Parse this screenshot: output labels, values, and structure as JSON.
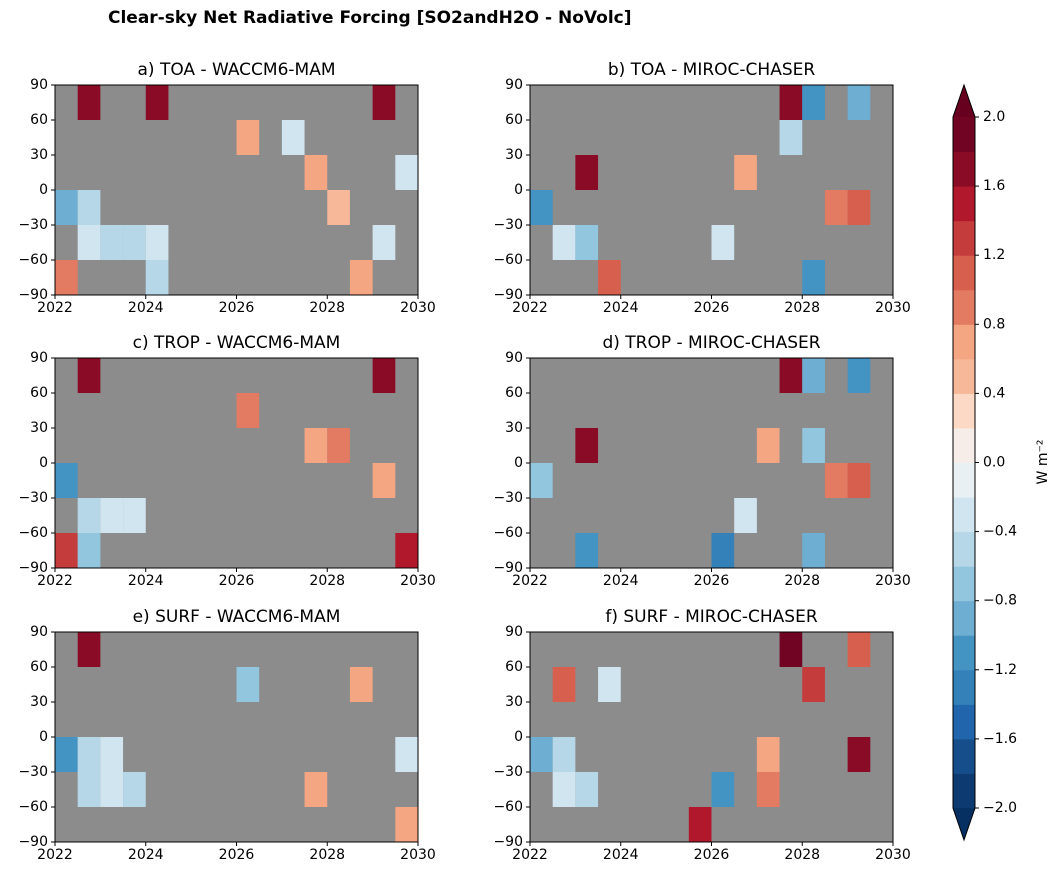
{
  "title": "Clear-sky Net Radiative Forcing [SO2andH2O - NoVolc]",
  "colorbar": {
    "label": "W m⁻²",
    "levels": [
      -2,
      -1.8,
      -1.6,
      -1.4,
      -1.2,
      -1,
      -0.8,
      -0.6,
      -0.4,
      -0.2,
      0,
      0.2,
      0.4,
      0.6,
      0.8,
      1,
      1.2,
      1.4,
      1.6,
      1.8,
      2
    ],
    "colors": [
      "#0d3a70",
      "#154e8a",
      "#2166ac",
      "#3480b9",
      "#4393c3",
      "#6eaed2",
      "#92c5de",
      "#b6d7e8",
      "#d1e5f0",
      "#e9f0f4",
      "#f7ede8",
      "#fbd9c4",
      "#f7b799",
      "#f4a582",
      "#e27b62",
      "#d6604d",
      "#c43c3c",
      "#b2182b",
      "#8a0b25",
      "#700422"
    ],
    "extend_colors": [
      "#053061",
      "#67001f"
    ],
    "ticks": [
      {
        "value": -2,
        "label": "−2.0"
      },
      {
        "value": -1.6,
        "label": "−1.6"
      },
      {
        "value": -1.2,
        "label": "−1.2"
      },
      {
        "value": -0.8,
        "label": "−0.8"
      },
      {
        "value": -0.4,
        "label": "−0.4"
      },
      {
        "value": 0,
        "label": "0.0"
      },
      {
        "value": 0.4,
        "label": "0.4"
      },
      {
        "value": 0.8,
        "label": "0.8"
      },
      {
        "value": 1.2,
        "label": "1.2"
      },
      {
        "value": 1.6,
        "label": "1.6"
      },
      {
        "value": 2,
        "label": "2.0"
      }
    ]
  },
  "chart_data": [
    {
      "type": "heatmap",
      "title": "a) TOA - WACCM6-MAM",
      "mask_color": "#8c8c8c",
      "x": [
        2022,
        2022.5,
        2023,
        2023.5,
        2024,
        2024.5,
        2025,
        2025.5,
        2026,
        2026.5,
        2027,
        2027.5,
        2028,
        2028.5,
        2029,
        2029.5,
        2030
      ],
      "y": [
        -90,
        -60,
        -30,
        0,
        30,
        60,
        90
      ],
      "values": [
        [
          0.8,
          null,
          null,
          null,
          -0.6,
          null,
          null,
          null,
          null,
          null,
          null,
          null,
          null,
          0.6,
          null,
          null
        ],
        [
          null,
          -0.4,
          -0.6,
          -0.6,
          -0.4,
          null,
          null,
          null,
          null,
          null,
          null,
          null,
          null,
          null,
          -0.4,
          null
        ],
        [
          -1.0,
          -0.6,
          null,
          null,
          null,
          null,
          null,
          null,
          null,
          null,
          null,
          null,
          0.4,
          null,
          null,
          null
        ],
        [
          null,
          null,
          null,
          null,
          null,
          null,
          null,
          null,
          null,
          null,
          null,
          0.6,
          null,
          null,
          null,
          -0.4
        ],
        [
          null,
          null,
          null,
          null,
          null,
          null,
          null,
          null,
          0.6,
          null,
          -0.4,
          null,
          null,
          null,
          null,
          null
        ],
        [
          null,
          1.6,
          null,
          null,
          1.6,
          null,
          null,
          null,
          null,
          null,
          null,
          null,
          null,
          null,
          1.6,
          null
        ]
      ],
      "xlim": [
        2022,
        2030
      ],
      "ylim": [
        -90,
        90
      ],
      "xticks": [
        2022,
        2024,
        2026,
        2028,
        2030
      ],
      "yticks": [
        {
          "value": -90,
          "label": "−90"
        },
        {
          "value": -60,
          "label": "−60"
        },
        {
          "value": -30,
          "label": "−30"
        },
        0,
        30,
        60,
        90
      ]
    },
    {
      "type": "heatmap",
      "title": "b) TOA - MIROC-CHASER",
      "mask_color": "#8c8c8c",
      "x": [
        2022,
        2022.5,
        2023,
        2023.5,
        2024,
        2024.5,
        2025,
        2025.5,
        2026,
        2026.5,
        2027,
        2027.5,
        2028,
        2028.5,
        2029,
        2029.5,
        2030
      ],
      "y": [
        -90,
        -60,
        -30,
        0,
        30,
        60,
        90
      ],
      "values": [
        [
          null,
          null,
          null,
          1.0,
          null,
          null,
          null,
          null,
          null,
          null,
          null,
          null,
          -1.2,
          null,
          null,
          null
        ],
        [
          null,
          -0.4,
          -0.8,
          null,
          null,
          null,
          null,
          null,
          -0.4,
          null,
          null,
          null,
          null,
          null,
          null,
          null
        ],
        [
          -1.2,
          null,
          null,
          null,
          null,
          null,
          null,
          null,
          null,
          null,
          null,
          null,
          null,
          0.8,
          1.0,
          null
        ],
        [
          null,
          null,
          1.6,
          null,
          null,
          null,
          null,
          null,
          null,
          0.6,
          null,
          null,
          null,
          null,
          null,
          null
        ],
        [
          null,
          null,
          null,
          null,
          null,
          null,
          null,
          null,
          null,
          null,
          null,
          -0.6,
          null,
          null,
          null,
          null
        ],
        [
          null,
          null,
          null,
          null,
          null,
          null,
          null,
          null,
          null,
          null,
          null,
          1.6,
          -1.2,
          null,
          -1.0,
          null
        ]
      ],
      "xlim": [
        2022,
        2030
      ],
      "ylim": [
        -90,
        90
      ],
      "xticks": [
        2022,
        2024,
        2026,
        2028,
        2030
      ],
      "yticks": [
        {
          "value": -90,
          "label": "−90"
        },
        {
          "value": -60,
          "label": "−60"
        },
        {
          "value": -30,
          "label": "−30"
        },
        0,
        30,
        60,
        90
      ]
    },
    {
      "type": "heatmap",
      "title": "c) TROP - WACCM6-MAM",
      "mask_color": "#8c8c8c",
      "x": [
        2022,
        2022.5,
        2023,
        2023.5,
        2024,
        2024.5,
        2025,
        2025.5,
        2026,
        2026.5,
        2027,
        2027.5,
        2028,
        2028.5,
        2029,
        2029.5,
        2030
      ],
      "y": [
        -90,
        -60,
        -30,
        0,
        30,
        60,
        90
      ],
      "values": [
        [
          1.2,
          -0.8,
          null,
          null,
          null,
          null,
          null,
          null,
          null,
          null,
          null,
          null,
          null,
          null,
          null,
          1.4
        ],
        [
          null,
          -0.6,
          -0.4,
          -0.4,
          null,
          null,
          null,
          null,
          null,
          null,
          null,
          null,
          null,
          null,
          null,
          null
        ],
        [
          -1.2,
          null,
          null,
          null,
          null,
          null,
          null,
          null,
          null,
          null,
          null,
          null,
          null,
          null,
          0.6,
          null
        ],
        [
          null,
          null,
          null,
          null,
          null,
          null,
          null,
          null,
          null,
          null,
          null,
          0.6,
          0.8,
          null,
          null,
          null
        ],
        [
          null,
          null,
          null,
          null,
          null,
          null,
          null,
          null,
          0.8,
          null,
          null,
          null,
          null,
          null,
          null,
          null
        ],
        [
          null,
          1.6,
          null,
          null,
          null,
          null,
          null,
          null,
          null,
          null,
          null,
          null,
          null,
          null,
          1.6,
          null
        ]
      ],
      "xlim": [
        2022,
        2030
      ],
      "ylim": [
        -90,
        90
      ],
      "xticks": [
        2022,
        2024,
        2026,
        2028,
        2030
      ],
      "yticks": [
        {
          "value": -90,
          "label": "−90"
        },
        {
          "value": -60,
          "label": "−60"
        },
        {
          "value": -30,
          "label": "−30"
        },
        0,
        30,
        60,
        90
      ]
    },
    {
      "type": "heatmap",
      "title": "d) TROP - MIROC-CHASER",
      "mask_color": "#8c8c8c",
      "x": [
        2022,
        2022.5,
        2023,
        2023.5,
        2024,
        2024.5,
        2025,
        2025.5,
        2026,
        2026.5,
        2027,
        2027.5,
        2028,
        2028.5,
        2029,
        2029.5,
        2030
      ],
      "y": [
        -90,
        -60,
        -30,
        0,
        30,
        60,
        90
      ],
      "values": [
        [
          null,
          null,
          -1.2,
          null,
          null,
          null,
          null,
          null,
          -1.4,
          null,
          null,
          null,
          -1.0,
          null,
          null,
          null
        ],
        [
          null,
          null,
          null,
          null,
          null,
          null,
          null,
          null,
          null,
          -0.4,
          null,
          null,
          null,
          null,
          null,
          null
        ],
        [
          -0.8,
          null,
          null,
          null,
          null,
          null,
          null,
          null,
          null,
          null,
          null,
          null,
          null,
          0.8,
          1.0,
          null
        ],
        [
          null,
          null,
          1.6,
          null,
          null,
          null,
          null,
          null,
          null,
          null,
          0.6,
          null,
          -0.8,
          null,
          null,
          null
        ],
        [
          null,
          null,
          null,
          null,
          null,
          null,
          null,
          null,
          null,
          null,
          null,
          null,
          null,
          null,
          null,
          null
        ],
        [
          null,
          null,
          null,
          null,
          null,
          null,
          null,
          null,
          null,
          null,
          null,
          1.6,
          -1.0,
          null,
          -1.2,
          null
        ]
      ],
      "xlim": [
        2022,
        2030
      ],
      "ylim": [
        -90,
        90
      ],
      "xticks": [
        2022,
        2024,
        2026,
        2028,
        2030
      ],
      "yticks": [
        {
          "value": -90,
          "label": "−90"
        },
        {
          "value": -60,
          "label": "−60"
        },
        {
          "value": -30,
          "label": "−30"
        },
        0,
        30,
        60,
        90
      ]
    },
    {
      "type": "heatmap",
      "title": "e) SURF - WACCM6-MAM",
      "mask_color": "#8c8c8c",
      "x": [
        2022,
        2022.5,
        2023,
        2023.5,
        2024,
        2024.5,
        2025,
        2025.5,
        2026,
        2026.5,
        2027,
        2027.5,
        2028,
        2028.5,
        2029,
        2029.5,
        2030
      ],
      "y": [
        -90,
        -60,
        -30,
        0,
        30,
        60,
        90
      ],
      "values": [
        [
          null,
          null,
          null,
          null,
          null,
          null,
          null,
          null,
          null,
          null,
          null,
          null,
          null,
          null,
          null,
          0.6
        ],
        [
          null,
          -0.6,
          -0.4,
          -0.6,
          null,
          null,
          null,
          null,
          null,
          null,
          null,
          0.6,
          null,
          null,
          null,
          null
        ],
        [
          -1.2,
          -0.6,
          -0.4,
          null,
          null,
          null,
          null,
          null,
          null,
          null,
          null,
          null,
          null,
          null,
          null,
          -0.4
        ],
        [
          null,
          null,
          null,
          null,
          null,
          null,
          null,
          null,
          null,
          null,
          null,
          null,
          null,
          null,
          null,
          null
        ],
        [
          null,
          null,
          null,
          null,
          null,
          null,
          null,
          null,
          -0.8,
          null,
          null,
          null,
          null,
          0.6,
          null,
          null
        ],
        [
          null,
          1.6,
          null,
          null,
          null,
          null,
          null,
          null,
          null,
          null,
          null,
          null,
          null,
          null,
          null,
          null
        ]
      ],
      "xlim": [
        2022,
        2030
      ],
      "ylim": [
        -90,
        90
      ],
      "xticks": [
        2022,
        2024,
        2026,
        2028,
        2030
      ],
      "yticks": [
        {
          "value": -90,
          "label": "−90"
        },
        {
          "value": -60,
          "label": "−60"
        },
        {
          "value": -30,
          "label": "−30"
        },
        0,
        30,
        60,
        90
      ]
    },
    {
      "type": "heatmap",
      "title": "f) SURF - MIROC-CHASER",
      "mask_color": "#8c8c8c",
      "x": [
        2022,
        2022.5,
        2023,
        2023.5,
        2024,
        2024.5,
        2025,
        2025.5,
        2026,
        2026.5,
        2027,
        2027.5,
        2028,
        2028.5,
        2029,
        2029.5,
        2030
      ],
      "y": [
        -90,
        -60,
        -30,
        0,
        30,
        60,
        90
      ],
      "values": [
        [
          null,
          null,
          null,
          null,
          null,
          null,
          null,
          1.4,
          null,
          null,
          null,
          null,
          null,
          null,
          null,
          null
        ],
        [
          null,
          -0.4,
          -0.6,
          null,
          null,
          null,
          null,
          null,
          -1.2,
          null,
          0.8,
          null,
          null,
          null,
          null,
          null
        ],
        [
          -1.0,
          -0.6,
          null,
          null,
          null,
          null,
          null,
          null,
          null,
          null,
          0.6,
          null,
          null,
          null,
          1.6,
          null
        ],
        [
          null,
          null,
          null,
          null,
          null,
          null,
          null,
          null,
          null,
          null,
          null,
          null,
          null,
          null,
          null,
          null
        ],
        [
          null,
          1.0,
          null,
          -0.4,
          null,
          null,
          null,
          null,
          null,
          null,
          null,
          null,
          1.2,
          null,
          null,
          null
        ],
        [
          null,
          null,
          null,
          null,
          null,
          null,
          null,
          null,
          null,
          null,
          null,
          1.8,
          null,
          null,
          1.0,
          null
        ]
      ],
      "xlim": [
        2022,
        2030
      ],
      "ylim": [
        -90,
        90
      ],
      "xticks": [
        2022,
        2024,
        2026,
        2028,
        2030
      ],
      "yticks": [
        {
          "value": -90,
          "label": "−90"
        },
        {
          "value": -60,
          "label": "−60"
        },
        {
          "value": -30,
          "label": "−30"
        },
        0,
        30,
        60,
        90
      ]
    }
  ]
}
